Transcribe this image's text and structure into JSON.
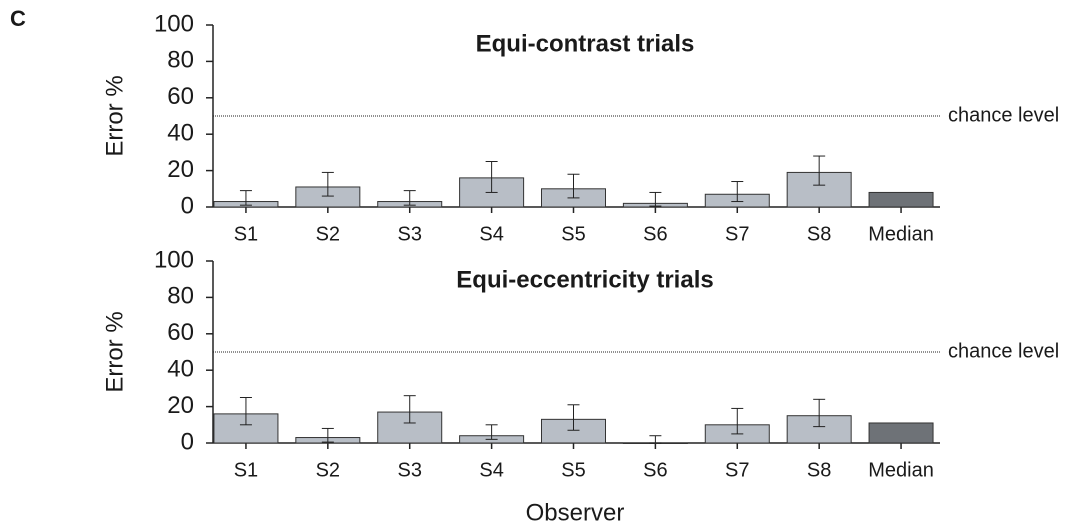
{
  "chart_data": [
    {
      "type": "bar",
      "panel_label": "C",
      "title": "Equi-contrast trials",
      "ylabel": "Error %",
      "categories": [
        "S1",
        "S2",
        "S3",
        "S4",
        "S5",
        "S6",
        "S7",
        "S8",
        "Median"
      ],
      "values": [
        3,
        11,
        3,
        16,
        10,
        2,
        7,
        19,
        8
      ],
      "err_low": [
        1,
        6,
        1,
        8,
        5,
        0.5,
        3,
        12,
        null
      ],
      "err_high": [
        9,
        19,
        9,
        25,
        18,
        8,
        14,
        28,
        null
      ],
      "colors": [
        "#b8bec6",
        "#b8bec6",
        "#b8bec6",
        "#b8bec6",
        "#b8bec6",
        "#b8bec6",
        "#b8bec6",
        "#b8bec6",
        "#6e7277"
      ],
      "ylim": [
        0,
        100
      ],
      "yticks": [
        0,
        20,
        40,
        60,
        80,
        100
      ],
      "reference_line": {
        "value": 50,
        "label": "chance level"
      }
    },
    {
      "type": "bar",
      "title": "Equi-eccentricity trials",
      "ylabel": "Error %",
      "xlabel": "Observer",
      "categories": [
        "S1",
        "S2",
        "S3",
        "S4",
        "S5",
        "S6",
        "S7",
        "S8",
        "Median"
      ],
      "values": [
        16,
        3,
        17,
        4,
        13,
        0,
        10,
        15,
        11
      ],
      "err_low": [
        10,
        0.5,
        11,
        2,
        7,
        0,
        5,
        9,
        null
      ],
      "err_high": [
        25,
        8,
        26,
        10,
        21,
        4,
        19,
        24,
        null
      ],
      "colors": [
        "#b8bec6",
        "#b8bec6",
        "#b8bec6",
        "#b8bec6",
        "#b8bec6",
        "#b8bec6",
        "#b8bec6",
        "#b8bec6",
        "#6e7277"
      ],
      "ylim": [
        0,
        100
      ],
      "yticks": [
        0,
        20,
        40,
        60,
        80,
        100
      ],
      "reference_line": {
        "value": 50,
        "label": "chance level"
      }
    }
  ]
}
